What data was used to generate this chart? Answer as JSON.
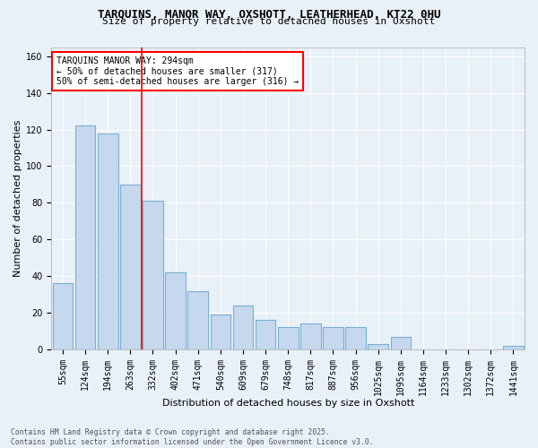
{
  "title_line1": "TARQUINS, MANOR WAY, OXSHOTT, LEATHERHEAD, KT22 0HU",
  "title_line2": "Size of property relative to detached houses in Oxshott",
  "xlabel": "Distribution of detached houses by size in Oxshott",
  "ylabel": "Number of detached properties",
  "categories": [
    "55sqm",
    "124sqm",
    "194sqm",
    "263sqm",
    "332sqm",
    "402sqm",
    "471sqm",
    "540sqm",
    "609sqm",
    "679sqm",
    "748sqm",
    "817sqm",
    "887sqm",
    "956sqm",
    "1025sqm",
    "1095sqm",
    "1164sqm",
    "1233sqm",
    "1302sqm",
    "1372sqm",
    "1441sqm"
  ],
  "values": [
    36,
    122,
    118,
    90,
    81,
    42,
    32,
    19,
    24,
    16,
    12,
    14,
    12,
    12,
    3,
    7,
    0,
    0,
    0,
    0,
    2
  ],
  "bar_color": "#c5d8ed",
  "bar_edge_color": "#7aafd4",
  "vline_x_index": 3,
  "vline_color": "red",
  "annotation_text": "TARQUINS MANOR WAY: 294sqm\n← 50% of detached houses are smaller (317)\n50% of semi-detached houses are larger (316) →",
  "annotation_box_color": "white",
  "annotation_box_edge_color": "red",
  "ylim": [
    0,
    165
  ],
  "yticks": [
    0,
    20,
    40,
    60,
    80,
    100,
    120,
    140,
    160
  ],
  "footnote": "Contains HM Land Registry data © Crown copyright and database right 2025.\nContains public sector information licensed under the Open Government Licence v3.0.",
  "bg_color": "#e8f0f8",
  "plot_bg_color": "#e8f0f8",
  "grid_color": "#ffffff",
  "tick_fontsize": 7,
  "title1_fontsize": 9,
  "title2_fontsize": 8,
  "label_fontsize": 8,
  "annot_fontsize": 7
}
